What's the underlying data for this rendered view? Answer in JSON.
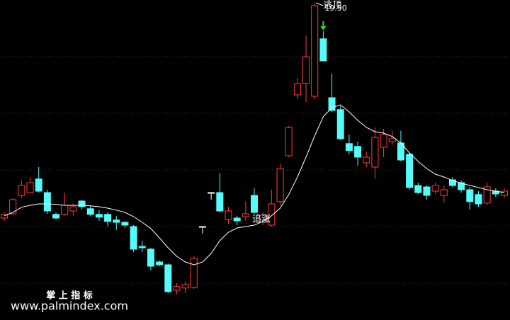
{
  "chart_data": {
    "type": "candlestick",
    "ylim": [
      8.7,
      20
    ],
    "yticks": [
      10,
      12,
      14,
      16,
      18
    ],
    "grid": true,
    "up_color": "#ff3c3c",
    "down_color": "#54fcfc",
    "flat_color": "#ffffff",
    "open": [
      12.3,
      12.45,
      13.1,
      13.2,
      13.68,
      13.2,
      12.43,
      12.43,
      12.55,
      12.9,
      12.63,
      12.43,
      12.43,
      12.23,
      12.15,
      12.0,
      11.3,
      11.2,
      10.75,
      10.65,
      9.75,
      9.83,
      9.85,
      12.0,
      13.2,
      13.2,
      12.25,
      12.3,
      12.35,
      13.1,
      12.25,
      12.05,
      12.88,
      14.5,
      16.65,
      17.05,
      16.6,
      18.63,
      16.55,
      16.13,
      14.93,
      14.83,
      14.25,
      14.1,
      14.8,
      15.0,
      14.95,
      14.55,
      13.45,
      13.4,
      13.25,
      13.1,
      13.65,
      13.55,
      13.3,
      13.13,
      12.83,
      13.25,
      13.1
    ],
    "high": [
      12.5,
      13.0,
      13.63,
      13.75,
      14.1,
      13.3,
      12.5,
      13.2,
      12.8,
      12.95,
      12.75,
      12.58,
      12.5,
      12.38,
      12.2,
      12.05,
      11.5,
      11.25,
      10.8,
      10.7,
      10.0,
      10.05,
      10.95,
      12.0,
      13.2,
      13.88,
      12.7,
      12.38,
      12.88,
      13.35,
      12.5,
      13.3,
      14.2,
      15.55,
      17.25,
      18.75,
      19.9,
      18.9,
      17.4,
      16.25,
      15.25,
      15.0,
      14.63,
      15.5,
      15.45,
      15.38,
      15.38,
      14.6,
      13.55,
      13.45,
      13.55,
      13.45,
      13.75,
      13.63,
      13.4,
      13.25,
      13.55,
      13.35,
      13.35
    ],
    "low": [
      12.2,
      12.4,
      13.0,
      13.2,
      13.2,
      12.45,
      12.25,
      12.38,
      12.38,
      12.6,
      12.38,
      12.2,
      12.0,
      11.88,
      11.95,
      11.1,
      11.1,
      10.45,
      10.6,
      9.65,
      9.6,
      9.65,
      9.8,
      11.75,
      12.95,
      12.5,
      12.1,
      12.05,
      12.2,
      12.45,
      12.05,
      12.0,
      12.75,
      14.45,
      16.5,
      16.4,
      16.5,
      17.85,
      16.05,
      15.05,
      14.55,
      14.15,
      14.1,
      13.68,
      14.45,
      14.88,
      14.3,
      13.3,
      13.15,
      12.95,
      13.15,
      12.85,
      13.4,
      13.2,
      12.6,
      12.7,
      12.75,
      13.05,
      13.0
    ],
    "close": [
      12.43,
      12.95,
      13.45,
      13.55,
      13.25,
      12.55,
      12.3,
      12.75,
      12.7,
      12.7,
      12.43,
      12.33,
      12.18,
      12.15,
      12.05,
      11.2,
      11.25,
      10.6,
      10.65,
      9.7,
      9.88,
      9.95,
      10.88,
      12.0,
      13.2,
      12.55,
      12.55,
      12.2,
      12.45,
      12.5,
      12.4,
      12.8,
      14.05,
      15.5,
      17.05,
      18.0,
      19.8,
      17.85,
      16.1,
      15.1,
      14.68,
      14.45,
      14.45,
      15.15,
      15.25,
      15.1,
      14.35,
      13.38,
      13.2,
      13.1,
      13.45,
      13.3,
      13.45,
      13.3,
      12.88,
      12.8,
      13.4,
      13.15,
      13.25
    ],
    "ma": {
      "color": "#ffffff",
      "values": [
        12.38,
        12.5,
        12.68,
        12.75,
        12.8,
        12.8,
        12.78,
        12.75,
        12.75,
        12.75,
        12.73,
        12.7,
        12.65,
        12.58,
        12.5,
        12.35,
        12.15,
        11.93,
        11.6,
        11.25,
        10.95,
        10.75,
        10.65,
        10.75,
        11.05,
        11.5,
        11.8,
        11.95,
        12.0,
        12.05,
        12.18,
        12.38,
        12.65,
        13.13,
        13.75,
        14.45,
        15.2,
        15.88,
        16.2,
        16.3,
        16.05,
        15.75,
        15.5,
        15.35,
        15.3,
        15.18,
        14.95,
        14.6,
        14.3,
        14.05,
        13.85,
        13.75,
        13.63,
        13.53,
        13.45,
        13.38,
        13.3,
        13.25,
        13.2
      ]
    },
    "max_label": "19.90",
    "signals": [
      {
        "text": "逃顶",
        "index": 37
      },
      {
        "text": "追涨",
        "index": 29
      }
    ],
    "watermark": {
      "title": "掌 上 指 标",
      "url": "www.palmindex.com"
    }
  }
}
